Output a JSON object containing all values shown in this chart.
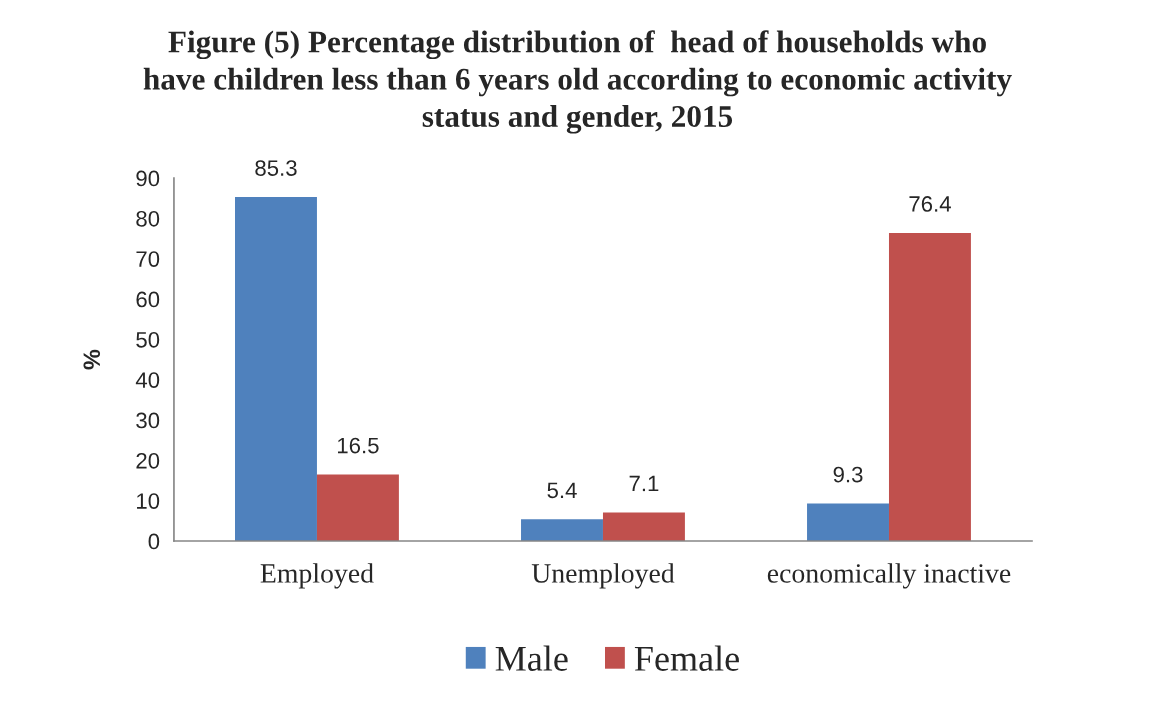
{
  "chart_data": {
    "type": "bar",
    "title": "Figure (5) Percentage distribution of  head of households who\nhave children less than 6 years old according to economic activity\nstatus and gender, 2015",
    "ylabel": "%",
    "categories": [
      "Employed",
      "Unemployed",
      "economically inactive"
    ],
    "series": [
      {
        "name": "Male",
        "color": "#4f81bd",
        "values": [
          85.3,
          5.4,
          9.3
        ]
      },
      {
        "name": "Female",
        "color": "#c0504d",
        "values": [
          16.5,
          7.1,
          76.4
        ]
      }
    ],
    "ylim": [
      0,
      90
    ],
    "yticks": [
      0,
      10,
      20,
      30,
      40,
      50,
      60,
      70,
      80,
      90
    ],
    "data_labels": true,
    "legend": "bottom",
    "grid": false
  }
}
